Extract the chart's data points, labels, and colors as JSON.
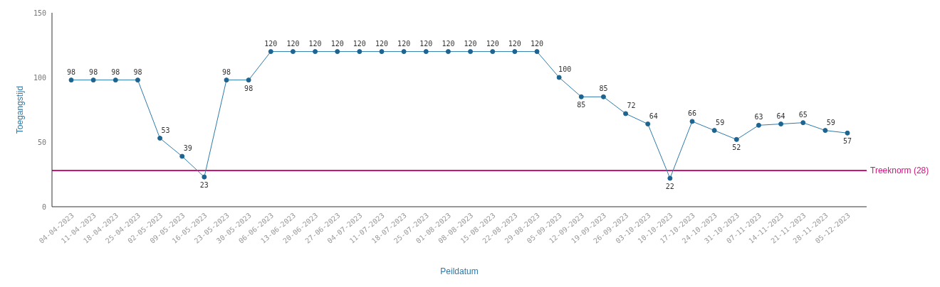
{
  "chart_data": {
    "type": "line",
    "xlabel": "Peildatum",
    "ylabel": "Toegangstijd",
    "categories": [
      "04-04-2023",
      "11-04-2023",
      "18-04-2023",
      "25-04-2023",
      "02-05-2023",
      "09-05-2023",
      "16-05-2023",
      "23-05-2023",
      "30-05-2023",
      "06-06-2023",
      "13-06-2023",
      "20-06-2023",
      "27-06-2023",
      "04-07-2023",
      "11-07-2023",
      "18-07-2023",
      "25-07-2023",
      "01-08-2023",
      "08-08-2023",
      "15-08-2023",
      "22-08-2023",
      "29-08-2023",
      "05-09-2023",
      "12-09-2023",
      "19-09-2023",
      "26-09-2023",
      "03-10-2023",
      "10-10-2023",
      "17-10-2023",
      "24-10-2023",
      "31-10-2023",
      "07-11-2023",
      "14-11-2023",
      "21-11-2023",
      "28-11-2023",
      "05-12-2023"
    ],
    "series": [
      {
        "color": "#2b7bab",
        "values": [
          98,
          98,
          98,
          98,
          53,
          39,
          23,
          98,
          98,
          120,
          120,
          120,
          120,
          120,
          120,
          120,
          120,
          120,
          120,
          120,
          120,
          120,
          100,
          85,
          85,
          72,
          64,
          22,
          66,
          59,
          52,
          63,
          64,
          65,
          59,
          57
        ]
      }
    ],
    "ylim": [
      0,
      150
    ],
    "yticks": [
      0,
      50,
      100,
      150
    ],
    "grid": false,
    "legend": false,
    "marker": "circle",
    "line_style": "solid",
    "data_labels": true,
    "ref_lines": [
      {
        "axis": "y",
        "value": 28,
        "label": "Treeknorm (28)",
        "color": "#c8177c"
      }
    ]
  }
}
